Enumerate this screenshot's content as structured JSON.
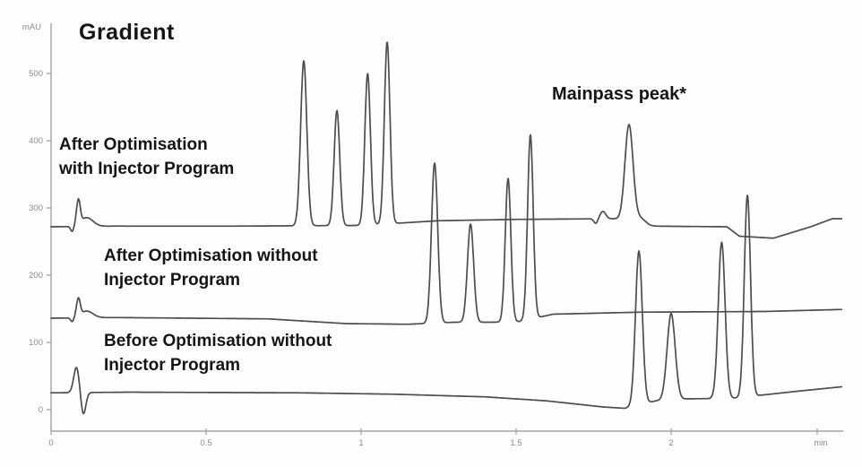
{
  "figure": {
    "title": "Gradient",
    "annotation": "Mainpass peak*"
  },
  "trace_labels": [
    {
      "lines": [
        "After Optimisation",
        "with Injector Program"
      ]
    },
    {
      "lines": [
        "After Optimisation without",
        "Injector Program"
      ]
    },
    {
      "lines": [
        "Before Optimisation without",
        "Injector Program"
      ]
    }
  ],
  "colors": {
    "trace": "#4d4d4d",
    "axis": "#a3a3a3",
    "tick_text": "#8a8a8a",
    "label_text": "#151515"
  },
  "chart_data": {
    "type": "line",
    "title": "Gradient",
    "x_unit": "min",
    "y_unit": "mAU",
    "x_range": [
      0,
      2.55
    ],
    "y_range": [
      -40,
      600
    ],
    "x_ticks": [
      0,
      0.5,
      1,
      1.5,
      2
    ],
    "x_tick_labels": [
      "0",
      "0.5",
      "1",
      "1.5",
      "2"
    ],
    "y_ticks": [
      0,
      100,
      200,
      300,
      400,
      500
    ],
    "grid": false,
    "legend_position": "inline-labels",
    "annotation_target": {
      "series": 0,
      "peak_t_min": 1.864
    },
    "series": [
      {
        "name": "After Optimisation with Injector Program",
        "baseline_mau": [
          [
            0,
            272
          ],
          [
            0.2,
            273
          ],
          [
            0.6,
            273
          ],
          [
            1.0,
            274
          ],
          [
            1.25,
            281
          ],
          [
            1.5,
            283
          ],
          [
            1.82,
            284
          ],
          [
            1.93,
            273
          ],
          [
            2.18,
            272
          ],
          [
            2.22,
            258
          ],
          [
            2.33,
            255
          ],
          [
            2.45,
            272
          ],
          [
            2.52,
            284
          ],
          [
            2.55,
            284
          ]
        ],
        "peaks": [
          {
            "t_min": 0.815,
            "apex_mau": 519,
            "sigma": 0.01
          },
          {
            "t_min": 0.922,
            "apex_mau": 445,
            "sigma": 0.009
          },
          {
            "t_min": 1.021,
            "apex_mau": 500,
            "sigma": 0.009
          },
          {
            "t_min": 1.084,
            "apex_mau": 547,
            "sigma": 0.009
          },
          {
            "t_min": 1.864,
            "apex_mau": 423,
            "sigma": 0.013
          }
        ],
        "disturbances": [
          {
            "t_min": 0.068,
            "delta_mau": -8,
            "sigma": 0.005
          },
          {
            "t_min": 0.088,
            "delta_mau": 36,
            "sigma": 0.006
          },
          {
            "t_min": 0.115,
            "delta_mau": 13,
            "sigma": 0.02
          },
          {
            "t_min": 1.757,
            "delta_mau": -7,
            "sigma": 0.006
          },
          {
            "t_min": 1.78,
            "delta_mau": 11,
            "sigma": 0.009
          },
          {
            "t_min": 1.9,
            "delta_mau": 9,
            "sigma": 0.018
          }
        ]
      },
      {
        "name": "After Optimisation without Injector Program",
        "baseline_mau": [
          [
            0,
            136
          ],
          [
            0.2,
            137
          ],
          [
            0.7,
            135
          ],
          [
            0.95,
            128
          ],
          [
            1.15,
            127
          ],
          [
            1.3,
            130
          ],
          [
            1.42,
            130
          ],
          [
            1.51,
            131
          ],
          [
            1.62,
            142
          ],
          [
            1.9,
            145
          ],
          [
            2.3,
            146
          ],
          [
            2.55,
            149
          ]
        ],
        "peaks": [
          {
            "t_min": 1.237,
            "apex_mau": 367,
            "sigma": 0.01
          },
          {
            "t_min": 1.353,
            "apex_mau": 276,
            "sigma": 0.01
          },
          {
            "t_min": 1.474,
            "apex_mau": 344,
            "sigma": 0.009
          },
          {
            "t_min": 1.546,
            "apex_mau": 409,
            "sigma": 0.009
          }
        ],
        "disturbances": [
          {
            "t_min": 0.068,
            "delta_mau": -6,
            "sigma": 0.005
          },
          {
            "t_min": 0.088,
            "delta_mau": 26,
            "sigma": 0.006
          },
          {
            "t_min": 0.115,
            "delta_mau": 10,
            "sigma": 0.02
          }
        ]
      },
      {
        "name": "Before Optimisation without Injector Program",
        "baseline_mau": [
          [
            0,
            25
          ],
          [
            0.25,
            26
          ],
          [
            0.8,
            25
          ],
          [
            1.1,
            23
          ],
          [
            1.4,
            19
          ],
          [
            1.6,
            13
          ],
          [
            1.78,
            4
          ],
          [
            1.85,
            2
          ],
          [
            1.95,
            13
          ],
          [
            2.05,
            16
          ],
          [
            2.2,
            17
          ],
          [
            2.3,
            22
          ],
          [
            2.42,
            28
          ],
          [
            2.55,
            34
          ]
        ],
        "peaks": [
          {
            "t_min": 1.896,
            "apex_mau": 236,
            "sigma": 0.011
          },
          {
            "t_min": 2.0,
            "apex_mau": 143,
            "sigma": 0.013
          },
          {
            "t_min": 2.163,
            "apex_mau": 249,
            "sigma": 0.011
          },
          {
            "t_min": 2.246,
            "apex_mau": 319,
            "sigma": 0.01
          }
        ],
        "disturbances": [
          {
            "t_min": 0.082,
            "delta_mau": 38,
            "sigma": 0.009
          },
          {
            "t_min": 0.104,
            "delta_mau": -33,
            "sigma": 0.008
          }
        ]
      }
    ]
  }
}
